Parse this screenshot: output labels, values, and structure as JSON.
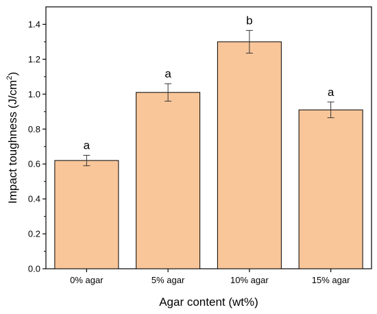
{
  "chart_data": {
    "type": "bar",
    "categories": [
      "0% agar",
      "5% agar",
      "10% agar",
      "15% agar"
    ],
    "values": [
      0.62,
      1.01,
      1.3,
      0.91
    ],
    "errors": [
      0.03,
      0.05,
      0.065,
      0.045
    ],
    "significance_labels": [
      "a",
      "a",
      "b",
      "a"
    ],
    "xlabel": "Agar content (wt%)",
    "ylabel_main": "Impact toughness (J/cm",
    "ylabel_sup": "2",
    "ylabel_end": ")",
    "ylim": [
      0,
      1.5
    ],
    "yticks": [
      "0.0",
      "0.2",
      "0.4",
      "0.6",
      "0.8",
      "1.0",
      "1.2",
      "1.4"
    ],
    "bar_color": "#F9C69A",
    "grid": false,
    "legend": "none"
  }
}
